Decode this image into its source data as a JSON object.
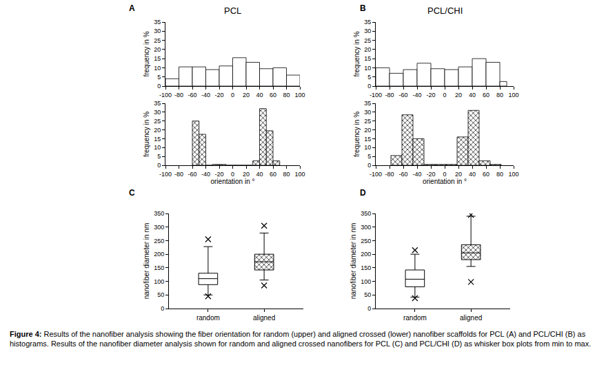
{
  "chart_data": [
    {
      "type": "histogram",
      "panel": "A",
      "title": "PCL",
      "bins": [
        -100,
        -80,
        -60,
        -40,
        -20,
        0,
        20,
        40,
        60,
        80,
        100
      ],
      "values": [
        4,
        10.5,
        10.5,
        9,
        11,
        15.5,
        13,
        9.5,
        10,
        6
      ],
      "color": "#ffffff",
      "marker": "plain",
      "xlim": [
        -100,
        100
      ],
      "xticks": [
        -100,
        -80,
        -60,
        -40,
        -20,
        0,
        20,
        40,
        60,
        80,
        100
      ],
      "ylim": [
        0,
        35
      ],
      "yticks": [
        0,
        5,
        10,
        15,
        20,
        25,
        30,
        35
      ],
      "ylabel": "frequency in %"
    },
    {
      "type": "histogram",
      "bins": [
        -60,
        -50,
        -40,
        -30,
        -20,
        -10,
        0,
        10,
        20,
        30,
        40,
        50,
        60,
        70
      ],
      "values": [
        25,
        17.5,
        0,
        0.5,
        0.5,
        0,
        0,
        0,
        0,
        2.5,
        32,
        19.5,
        2.5
      ],
      "color": "#ffffff",
      "marker": "crosshatch",
      "xlim": [
        -100,
        100
      ],
      "xticks": [
        -100,
        -80,
        -60,
        -40,
        -20,
        0,
        20,
        40,
        60,
        80,
        100
      ],
      "ylim": [
        0,
        35
      ],
      "yticks": [
        0,
        5,
        10,
        15,
        20,
        25,
        30,
        35
      ],
      "xlabel": "orientation in °",
      "ylabel": "frequency in %"
    },
    {
      "type": "histogram",
      "panel": "B",
      "title": "PCL/CHI",
      "bins": [
        -100,
        -80,
        -60,
        -40,
        -20,
        0,
        20,
        40,
        60,
        80,
        90
      ],
      "values": [
        10,
        7,
        9,
        12.5,
        9.5,
        9,
        10.5,
        15,
        13,
        2.5
      ],
      "color": "#ffffff",
      "marker": "plain",
      "xlim": [
        -100,
        100
      ],
      "xticks": [
        -100,
        -80,
        -60,
        -40,
        -20,
        0,
        20,
        40,
        60,
        80,
        100
      ],
      "ylim": [
        0,
        35
      ],
      "yticks": [
        0,
        5,
        10,
        15,
        20,
        25,
        30,
        35
      ],
      "ylabel": "frequency in %"
    },
    {
      "type": "histogram",
      "bins": [
        -78,
        -62,
        -46,
        -30,
        -14,
        2,
        18,
        34,
        50,
        66,
        82
      ],
      "values": [
        5.5,
        28.5,
        15,
        0.5,
        0.5,
        0.5,
        16,
        31,
        2.5,
        0.5
      ],
      "color": "#ffffff",
      "marker": "crosshatch",
      "xlim": [
        -100,
        100
      ],
      "xticks": [
        -100,
        -80,
        -60,
        -40,
        -20,
        0,
        20,
        40,
        60,
        80,
        100
      ],
      "ylim": [
        0,
        35
      ],
      "yticks": [
        0,
        5,
        10,
        15,
        20,
        25,
        30,
        35
      ],
      "xlabel": "orientation in °",
      "ylabel": "frequency in %"
    },
    {
      "type": "box",
      "panel": "C",
      "categories": [
        "random",
        "aligned"
      ],
      "boxes": [
        {
          "min": 45,
          "lower_whisker": 50,
          "q1": 88,
          "median": 110,
          "q3": 130,
          "upper_whisker": 228,
          "max": 255,
          "marker": "plain"
        },
        {
          "min": 85,
          "lower_whisker": 105,
          "q1": 142,
          "median": 172,
          "q3": 200,
          "upper_whisker": 278,
          "max": 305,
          "marker": "crosshatch"
        }
      ],
      "color": "#ffffff",
      "ylim": [
        0,
        350
      ],
      "yticks": [
        0,
        50,
        100,
        150,
        200,
        250,
        300,
        350
      ],
      "ylabel": "nanofiber diameter in nm"
    },
    {
      "type": "box",
      "panel": "D",
      "categories": [
        "random",
        "aligned"
      ],
      "boxes": [
        {
          "min": 38,
          "lower_whisker": 42,
          "q1": 80,
          "median": 108,
          "q3": 142,
          "upper_whisker": 200,
          "max": 215,
          "marker": "plain"
        },
        {
          "min": 98,
          "lower_whisker": 155,
          "q1": 180,
          "median": 205,
          "q3": 235,
          "upper_whisker": 340,
          "max": 345,
          "marker": "crosshatch"
        }
      ],
      "color": "#ffffff",
      "ylim": [
        0,
        350
      ],
      "yticks": [
        0,
        50,
        100,
        150,
        200,
        250,
        300,
        350
      ],
      "ylabel": "nanofiber diameter in nm"
    }
  ],
  "caption": {
    "label": "Figure 4:",
    "text": " Results of the nanofiber analysis showing the fiber orientation for random (upper) and aligned crossed (lower) nanofiber scaffolds for PCL (A) and PCL/CHI (B) as histograms. Results of the nanofiber diameter analysis shown for random and aligned crossed nanofibers for PCL (C) and PCL/CHI (D) as whisker box plots from min to max."
  }
}
